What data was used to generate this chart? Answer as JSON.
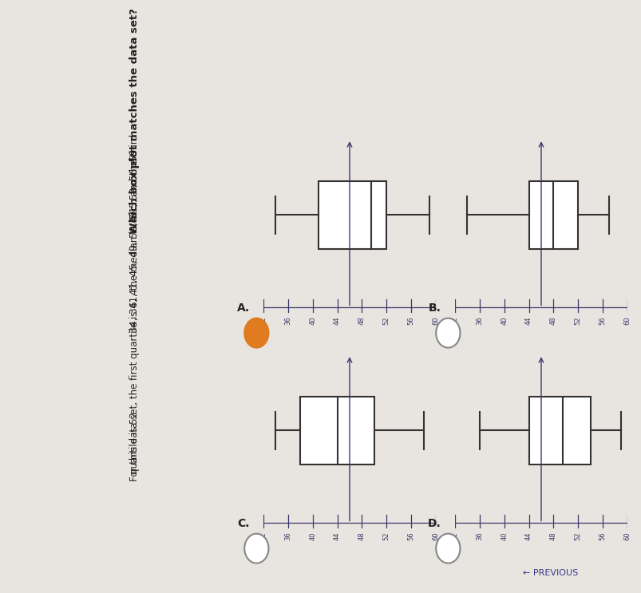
{
  "title": "Which box plot matches the data set?",
  "dataset_text": "34, 36, 41, 45, 49, 50, 51, 52, 56, 59",
  "explanation_line1": "For this data set, the first quartile is 41, the median is 49.5, and the third",
  "explanation_line2": "quartile is 52.",
  "bg_color": "#e8e4e0",
  "text_color": "#222222",
  "box_fill": "#ffffff",
  "box_edge": "#333333",
  "axis_color": "#3a3a6a",
  "selected_fill": "#e07b20",
  "selected_edge": "#e07b20",
  "unselected_fill": "#ffffff",
  "unselected_edge": "#888888",
  "box_plots": [
    {
      "label": "A",
      "selected": true,
      "min": 34,
      "q1": 41,
      "median": 49.5,
      "q3": 52,
      "max": 59
    },
    {
      "label": "B",
      "selected": false,
      "min": 34,
      "q1": 44,
      "median": 48,
      "q3": 52,
      "max": 57
    },
    {
      "label": "C",
      "selected": false,
      "min": 34,
      "q1": 38,
      "median": 44,
      "q3": 50,
      "max": 58
    },
    {
      "label": "D",
      "selected": false,
      "min": 36,
      "q1": 44,
      "median": 49.5,
      "q3": 54,
      "max": 59
    }
  ],
  "axis_min": 32,
  "axis_max": 60,
  "ticks": [
    32,
    36,
    40,
    44,
    48,
    52,
    56,
    60
  ]
}
